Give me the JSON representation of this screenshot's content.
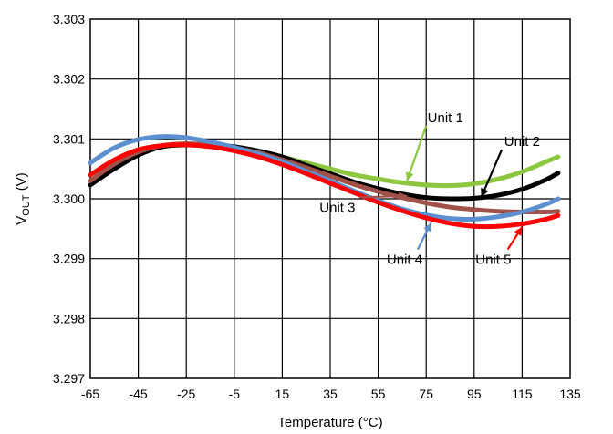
{
  "chart_data": {
    "type": "line",
    "title": "",
    "xlabel": "Temperature (°C)",
    "ylabel": {
      "main": "V",
      "sub": "OUT",
      "unit": " (V)"
    },
    "xlim": [
      -65,
      135
    ],
    "ylim": [
      3.297,
      3.303
    ],
    "xticks": [
      "-65",
      "-45",
      "-25",
      "-5",
      "15",
      "35",
      "55",
      "75",
      "95",
      "115",
      "135"
    ],
    "yticks": [
      "3.297",
      "3.298",
      "3.299",
      "3.300",
      "3.301",
      "3.302",
      "3.303"
    ],
    "grid": true,
    "series": [
      {
        "name": "Unit 1",
        "color": "#8dc63f",
        "x": [
          -65,
          -55,
          -45,
          -35,
          -25,
          -15,
          -5,
          5,
          15,
          25,
          35,
          45,
          55,
          65,
          75,
          85,
          95,
          105,
          115,
          125,
          130
        ],
        "y": [
          3.3003,
          3.30055,
          3.30075,
          3.30087,
          3.3009,
          3.30089,
          3.30085,
          3.30079,
          3.3007,
          3.3006,
          3.3005,
          3.3004,
          3.30033,
          3.30027,
          3.30023,
          3.30022,
          3.30025,
          3.30033,
          3.30045,
          3.30062,
          3.3007
        ]
      },
      {
        "name": "Unit 2",
        "color": "#000000",
        "x": [
          -65,
          -55,
          -45,
          -35,
          -25,
          -15,
          -5,
          5,
          15,
          25,
          35,
          45,
          55,
          65,
          75,
          85,
          95,
          105,
          115,
          125,
          130
        ],
        "y": [
          3.30023,
          3.3005,
          3.30073,
          3.30087,
          3.3009,
          3.3009,
          3.30087,
          3.3008,
          3.3007,
          3.30056,
          3.30042,
          3.30028,
          3.30017,
          3.30008,
          3.30002,
          3.3,
          3.30001,
          3.30006,
          3.30016,
          3.30032,
          3.30043
        ]
      },
      {
        "name": "Unit 3",
        "color": "#a0524a",
        "x": [
          -65,
          -55,
          -45,
          -35,
          -25,
          -15,
          -5,
          5,
          15,
          25,
          35,
          45,
          55,
          65,
          75,
          85,
          95,
          105,
          115,
          125,
          130
        ],
        "y": [
          3.3003,
          3.30058,
          3.30078,
          3.30089,
          3.30092,
          3.3009,
          3.30085,
          3.30077,
          3.30065,
          3.30052,
          3.30038,
          3.30024,
          3.30012,
          3.30002,
          3.29993,
          3.29986,
          3.29982,
          3.29979,
          3.29978,
          3.29978,
          3.29979
        ]
      },
      {
        "name": "Unit 4",
        "color": "#5b8fcf",
        "x": [
          -65,
          -55,
          -45,
          -35,
          -25,
          -15,
          -5,
          5,
          15,
          25,
          35,
          45,
          55,
          65,
          75,
          85,
          95,
          105,
          115,
          125,
          130
        ],
        "y": [
          3.3006,
          3.30085,
          3.30099,
          3.30104,
          3.30102,
          3.30095,
          3.30086,
          3.30075,
          3.30062,
          3.30046,
          3.3003,
          3.30013,
          3.29997,
          3.29983,
          3.29973,
          3.29967,
          3.29966,
          3.2997,
          3.29978,
          3.29991,
          3.3
        ]
      },
      {
        "name": "Unit 5",
        "color": "#ff0000",
        "x": [
          -65,
          -55,
          -45,
          -35,
          -25,
          -15,
          -5,
          5,
          15,
          25,
          35,
          45,
          55,
          65,
          75,
          85,
          95,
          105,
          115,
          125,
          130
        ],
        "y": [
          3.3004,
          3.30065,
          3.30082,
          3.30089,
          3.3009,
          3.30087,
          3.3008,
          3.3007,
          3.30057,
          3.30042,
          3.30026,
          3.3001,
          3.29994,
          3.2998,
          3.29968,
          3.29959,
          3.29954,
          3.29954,
          3.29958,
          3.29966,
          3.29972
        ]
      }
    ],
    "annotations": [
      {
        "text": "Unit 1",
        "series": 0,
        "pointer_to": [
          67,
          3.3003
        ],
        "label_at": [
          83,
          3.30128
        ]
      },
      {
        "text": "Unit 2",
        "series": 1,
        "pointer_to": [
          98,
          3.30003
        ],
        "label_at": [
          115,
          3.30088
        ]
      },
      {
        "text": "Unit 3",
        "series": 2,
        "pointer_to": [
          67,
          3.30005
        ],
        "label_at": [
          38,
          3.29978
        ]
      },
      {
        "text": "Unit 4",
        "series": 3,
        "pointer_to": [
          77,
          3.2996
        ],
        "label_at": [
          66,
          3.29891
        ]
      },
      {
        "text": "Unit 5",
        "series": 4,
        "pointer_to": [
          115,
          3.29953
        ],
        "label_at": [
          103,
          3.29891
        ]
      }
    ]
  }
}
